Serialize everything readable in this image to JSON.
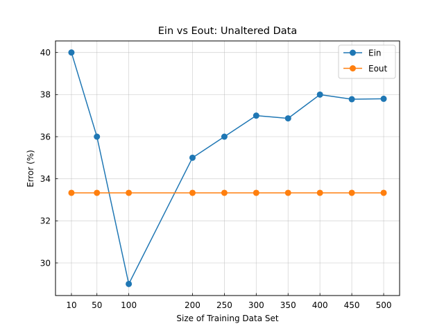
{
  "chart_data": {
    "type": "line",
    "title": "Ein vs Eout: Unaltered Data",
    "xlabel": "Size of Training Data Set",
    "ylabel": "Error (%)",
    "x": [
      10,
      50,
      100,
      200,
      250,
      300,
      350,
      400,
      450,
      500
    ],
    "x_ticks": [
      "10",
      "50",
      "100",
      "200",
      "250",
      "300",
      "350",
      "400",
      "450",
      "500"
    ],
    "y_ticks": [
      "30",
      "32",
      "34",
      "36",
      "38",
      "40"
    ],
    "xlim": [
      -15,
      525
    ],
    "ylim": [
      28.45,
      40.55
    ],
    "grid": true,
    "legend_position": "top-right",
    "series": [
      {
        "name": "Ein",
        "color": "#1f77b4",
        "values": [
          40,
          36,
          29,
          35,
          36,
          37,
          36.87,
          38,
          37.78,
          37.8
        ]
      },
      {
        "name": "Eout",
        "color": "#ff7f0e",
        "values": [
          33.33,
          33.33,
          33.33,
          33.33,
          33.33,
          33.33,
          33.33,
          33.33,
          33.33,
          33.33
        ]
      }
    ]
  }
}
